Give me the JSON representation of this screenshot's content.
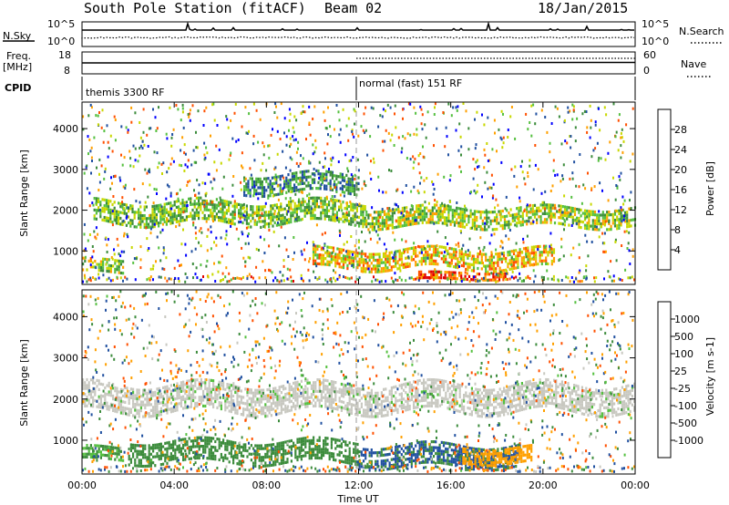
{
  "header": {
    "title": "South Pole Station (fitACF)",
    "beam": "Beam 02",
    "date": "18/Jan/2015"
  },
  "noise_panel": {
    "left_label": "N.Sky",
    "left_ticks": [
      "10^5",
      "10^0"
    ],
    "right_label": "N.Search",
    "right_ticks": [
      "10^5",
      "10^0"
    ]
  },
  "freq_panel": {
    "left_label_1": "Freq.",
    "left_label_2": "[MHz]",
    "left_ticks": [
      "18",
      "8"
    ],
    "right_label": "Nave",
    "right_ticks": [
      "60",
      "0"
    ]
  },
  "cpid": {
    "label": "CPID",
    "segments": [
      {
        "label": "themis 3300 RF",
        "start_hour": 0
      },
      {
        "label": "normal (fast) 151 RF",
        "start_hour": 12
      }
    ]
  },
  "x_axis": {
    "label": "Time UT",
    "ticks": [
      "00:00",
      "04:00",
      "08:00",
      "12:00",
      "16:00",
      "20:00",
      "00:00"
    ]
  },
  "colors": {
    "power": [
      "#0000ff",
      "#2050a0",
      "#3c8c3c",
      "#55c040",
      "#c8d800",
      "#ffa000",
      "#ff5000",
      "#e00000"
    ],
    "velocity": [
      "#e00000",
      "#ff5000",
      "#ffa000",
      "#c8c8c0",
      "#c8c8c0",
      "#55c040",
      "#3c8c3c",
      "#2050a0",
      "#0000ff"
    ]
  },
  "chart_data": [
    {
      "type": "heatmap",
      "name": "Power",
      "ylabel": "Slant Range [km]",
      "xlabel": "Time UT",
      "xlim": [
        0,
        24
      ],
      "ylim": [
        180,
        4650
      ],
      "yticks": [
        "1000",
        "2000",
        "3000",
        "4000"
      ],
      "colorbar": {
        "label": "Power [dB]",
        "ticks": [
          "4",
          "8",
          "12",
          "16",
          "20",
          "24",
          "28"
        ],
        "range": [
          0,
          32
        ]
      },
      "features": [
        {
          "t_start": 0.5,
          "t_end": 12.3,
          "range_km": 1950,
          "width_km": 550,
          "level": 14
        },
        {
          "t_start": 12.3,
          "t_end": 24.0,
          "range_km": 1850,
          "width_km": 450,
          "level": 16
        },
        {
          "t_start": 7.0,
          "t_end": 12.0,
          "range_km": 2650,
          "width_km": 500,
          "level": 10
        },
        {
          "t_start": 10.0,
          "t_end": 20.5,
          "range_km": 800,
          "width_km": 500,
          "level": 20
        },
        {
          "t_start": 0.0,
          "t_end": 1.8,
          "range_km": 650,
          "width_km": 300,
          "level": 16
        },
        {
          "t_start": 14.5,
          "t_end": 18.5,
          "range_km": 420,
          "width_km": 150,
          "level": 26
        }
      ]
    },
    {
      "type": "heatmap",
      "name": "Velocity",
      "ylabel": "Slant Range [km]",
      "xlabel": "Time UT",
      "xlim": [
        0,
        24
      ],
      "ylim": [
        180,
        4650
      ],
      "yticks": [
        "1000",
        "2000",
        "3000",
        "4000"
      ],
      "colorbar": {
        "label": "Velocity [m s-1]",
        "ticks": [
          "1000",
          "500",
          "100",
          "25",
          "-25",
          "-100",
          "-500",
          "-1000"
        ]
      },
      "features": [
        {
          "t_start": 0.0,
          "t_end": 24.0,
          "range_km": 2050,
          "width_km": 650,
          "velocity": 0
        },
        {
          "t_start": 2.0,
          "t_end": 12.0,
          "range_km": 750,
          "width_km": 500,
          "velocity": 250
        },
        {
          "t_start": 12.0,
          "t_end": 19.0,
          "range_km": 650,
          "width_km": 500,
          "velocity": 600
        },
        {
          "t_start": 16.5,
          "t_end": 19.5,
          "range_km": 650,
          "width_km": 400,
          "velocity": -300
        },
        {
          "t_start": 0.0,
          "t_end": 1.8,
          "range_km": 700,
          "width_km": 300,
          "velocity": 100
        }
      ]
    }
  ]
}
